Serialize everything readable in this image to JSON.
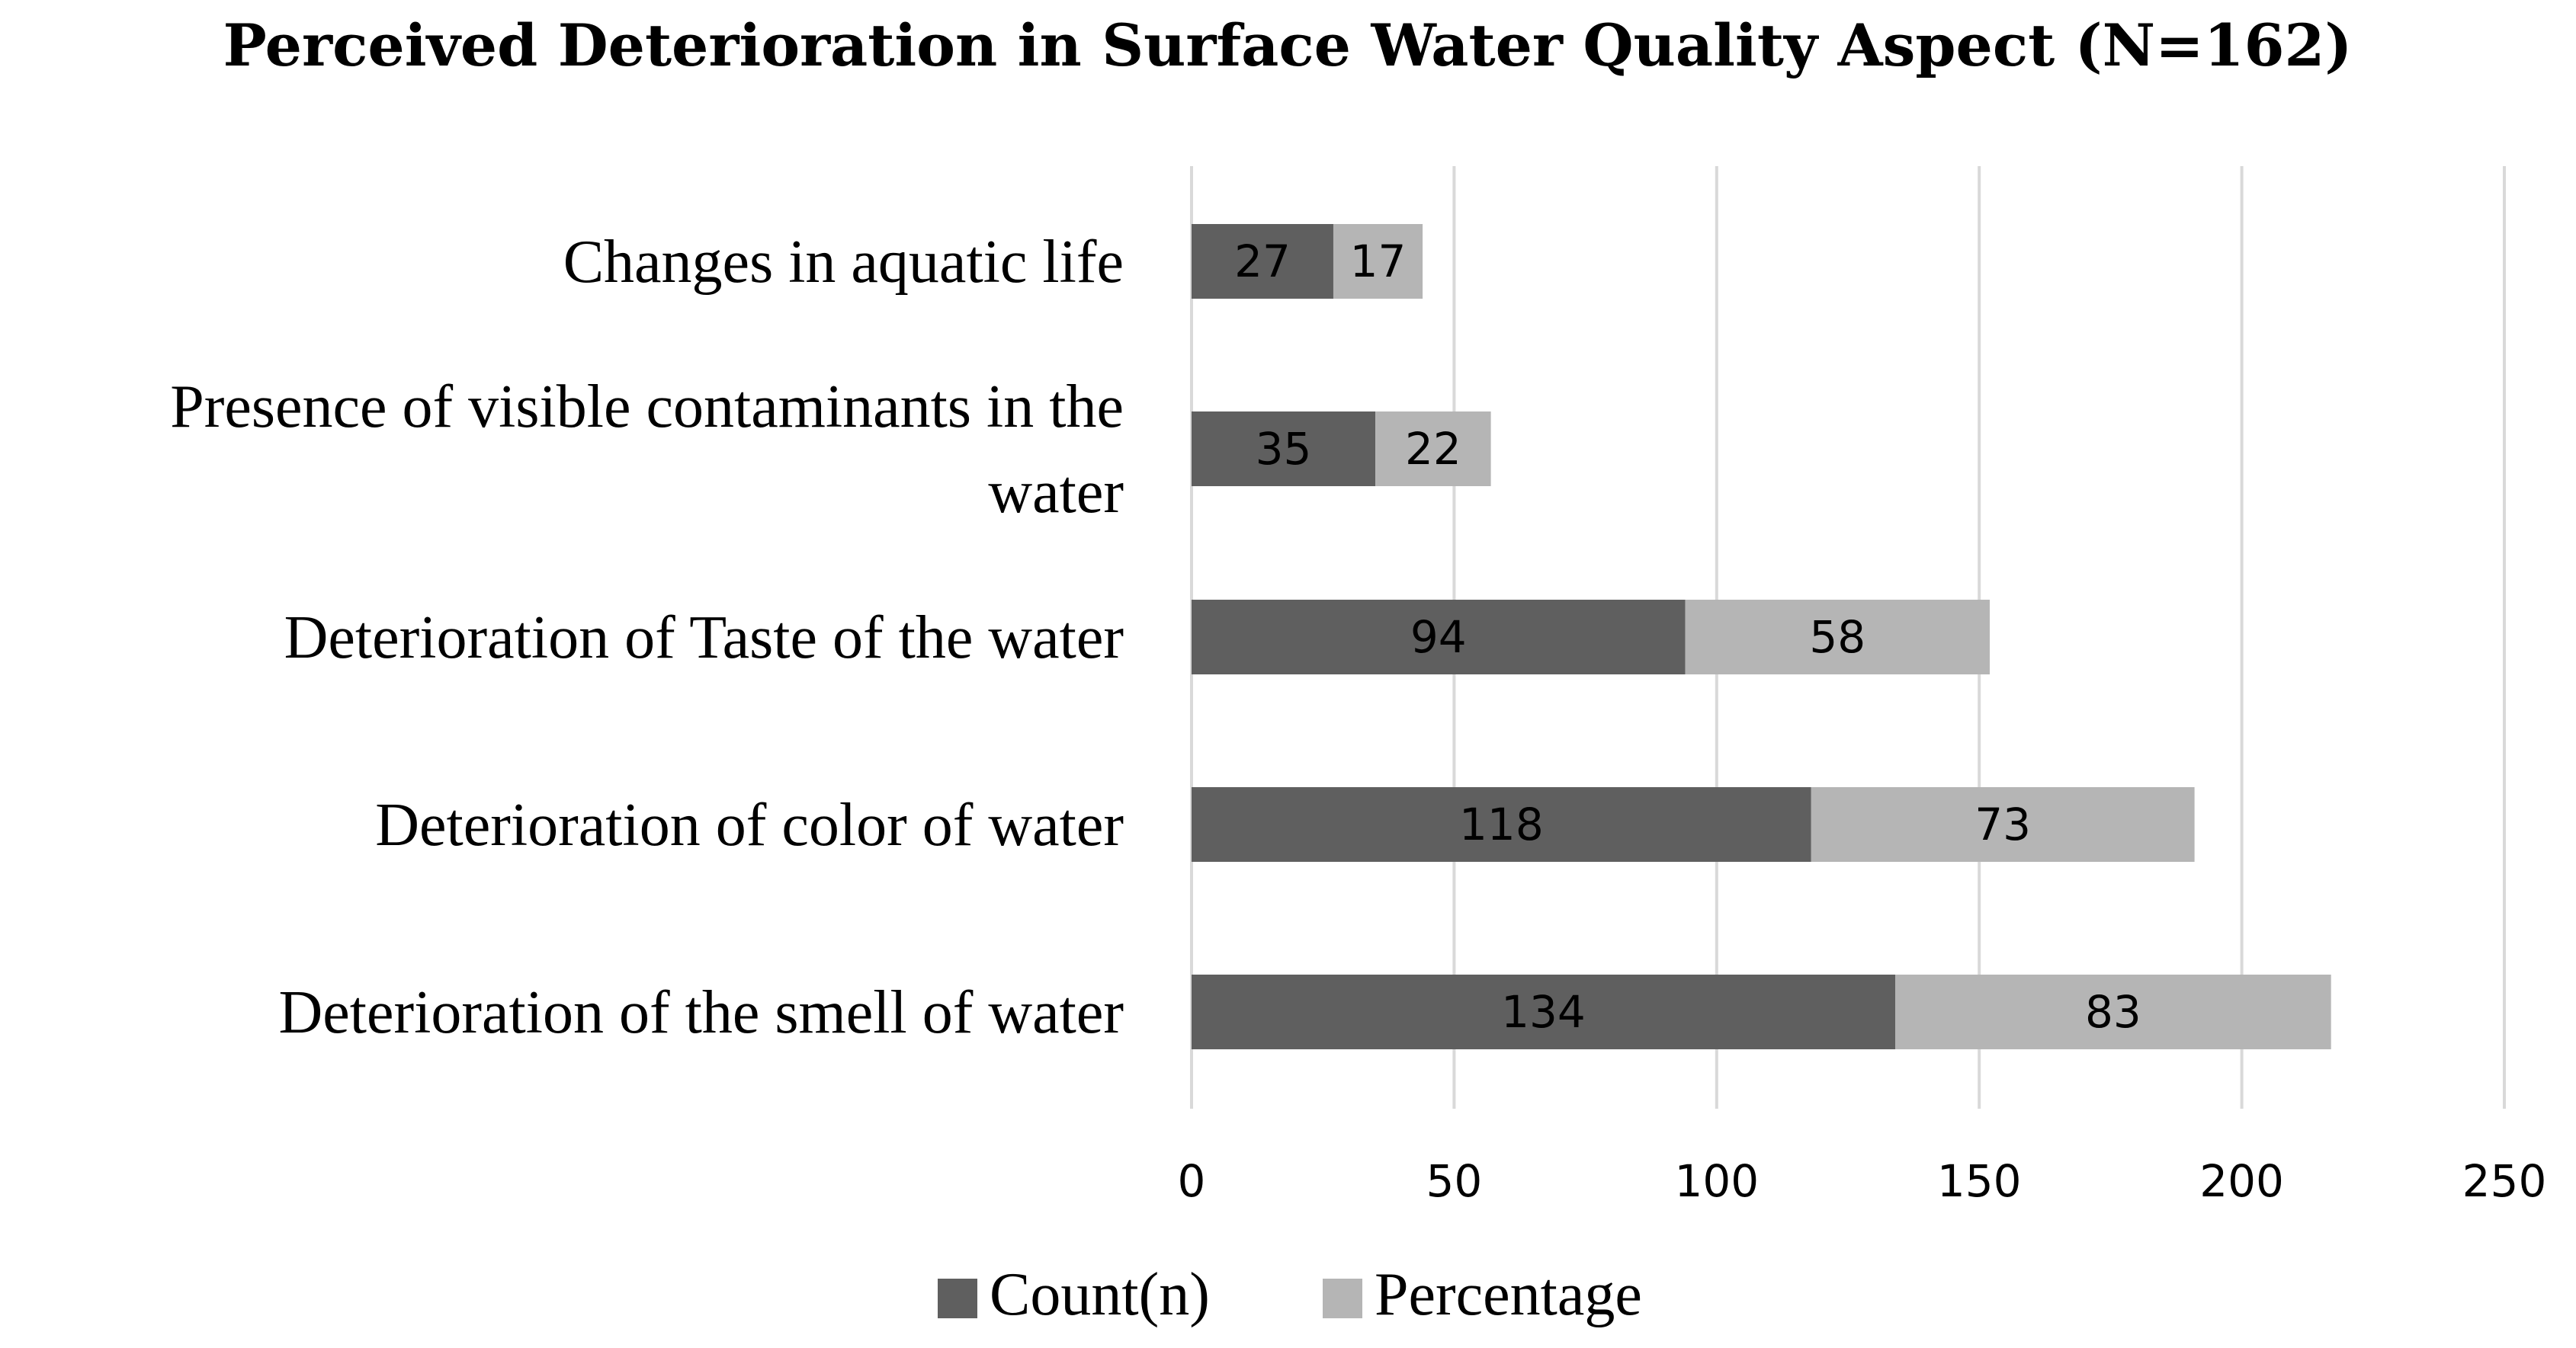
{
  "chart_data": {
    "type": "bar",
    "orientation": "horizontal",
    "stacked": true,
    "title": "Perceived Deterioration in Surface Water Quality Aspect (N=162)",
    "categories": [
      [
        "Changes in aquatic life"
      ],
      [
        "Presence of visible contaminants in the",
        "water"
      ],
      [
        "Deterioration of Taste of the water"
      ],
      [
        "Deterioration of color of water"
      ],
      [
        "Deterioration of the smell of water"
      ]
    ],
    "series": [
      {
        "name": "Count(n)",
        "color": "#5f5f5f",
        "values": [
          27,
          35,
          94,
          118,
          134
        ]
      },
      {
        "name": "Percentage",
        "color": "#b5b5b5",
        "values": [
          17,
          22,
          58,
          73,
          83
        ]
      }
    ],
    "xlim": [
      0,
      250
    ],
    "xticks": [
      0,
      50,
      100,
      150,
      200,
      250
    ],
    "grid": true,
    "grid_color": "#d9d9d9",
    "xlabel": "",
    "ylabel": "",
    "legend_position": "bottom"
  }
}
